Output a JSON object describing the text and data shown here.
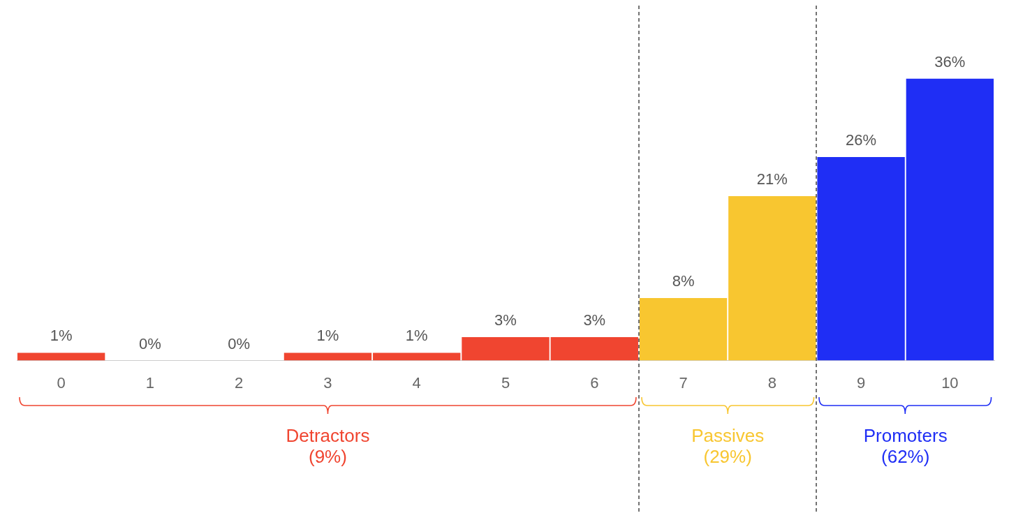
{
  "chart_data": {
    "type": "bar",
    "categories": [
      "0",
      "1",
      "2",
      "3",
      "4",
      "5",
      "6",
      "7",
      "8",
      "9",
      "10"
    ],
    "values": [
      1,
      0,
      0,
      1,
      1,
      3,
      3,
      8,
      21,
      26,
      36
    ],
    "colors": [
      "#f04530",
      "#f04530",
      "#f04530",
      "#f04530",
      "#f04530",
      "#f04530",
      "#f04530",
      "#f8c630",
      "#f8c630",
      "#1f2ef5",
      "#1f2ef5"
    ],
    "value_labels": [
      "1%",
      "0%",
      "0%",
      "1%",
      "1%",
      "3%",
      "3%",
      "8%",
      "21%",
      "26%",
      "36%"
    ],
    "annotations": [
      "Detractors (9%)",
      "Passives (29%)",
      "Promoters (62%)"
    ],
    "grid": false,
    "legend": false
  }
}
